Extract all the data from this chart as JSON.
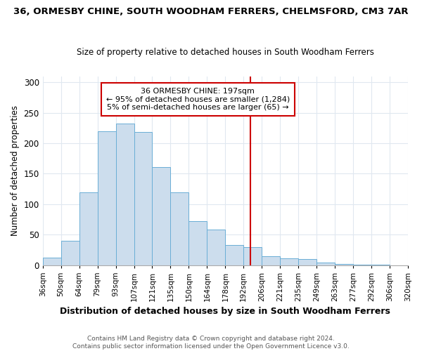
{
  "title_line1": "36, ORMESBY CHINE, SOUTH WOODHAM FERRERS, CHELMSFORD, CM3 7AR",
  "title_line2": "Size of property relative to detached houses in South Woodham Ferrers",
  "xlabel": "Distribution of detached houses by size in South Woodham Ferrers",
  "ylabel": "Number of detached properties",
  "footer_line1": "Contains HM Land Registry data © Crown copyright and database right 2024.",
  "footer_line2": "Contains public sector information licensed under the Open Government Licence v3.0.",
  "bin_labels": [
    "36sqm",
    "50sqm",
    "64sqm",
    "79sqm",
    "93sqm",
    "107sqm",
    "121sqm",
    "135sqm",
    "150sqm",
    "164sqm",
    "178sqm",
    "192sqm",
    "206sqm",
    "221sqm",
    "235sqm",
    "249sqm",
    "263sqm",
    "277sqm",
    "292sqm",
    "306sqm",
    "320sqm"
  ],
  "bar_values": [
    12,
    40,
    119,
    220,
    232,
    218,
    161,
    119,
    72,
    58,
    33,
    29,
    14,
    11,
    10,
    4,
    2,
    1,
    1,
    0
  ],
  "bar_color": "#ccdded",
  "bar_edge_color": "#6aaed6",
  "annotation_title": "36 ORMESBY CHINE: 197sqm",
  "annotation_line1": "← 95% of detached houses are smaller (1,284)",
  "annotation_line2": "5% of semi-detached houses are larger (65) →",
  "vline_color": "#cc0000",
  "ylim_max": 310,
  "yticks": [
    0,
    50,
    100,
    150,
    200,
    250,
    300
  ],
  "background_color": "#ffffff",
  "grid_color": "#e0e8f0",
  "annotation_box_color": "#ffffff",
  "annotation_border_color": "#cc0000",
  "title1_fontsize": 9.5,
  "title2_fontsize": 8.5,
  "ylabel_fontsize": 8.5,
  "xlabel_fontsize": 9,
  "footer_fontsize": 6.5,
  "tick_fontsize": 7.5,
  "ytick_fontsize": 8.5
}
